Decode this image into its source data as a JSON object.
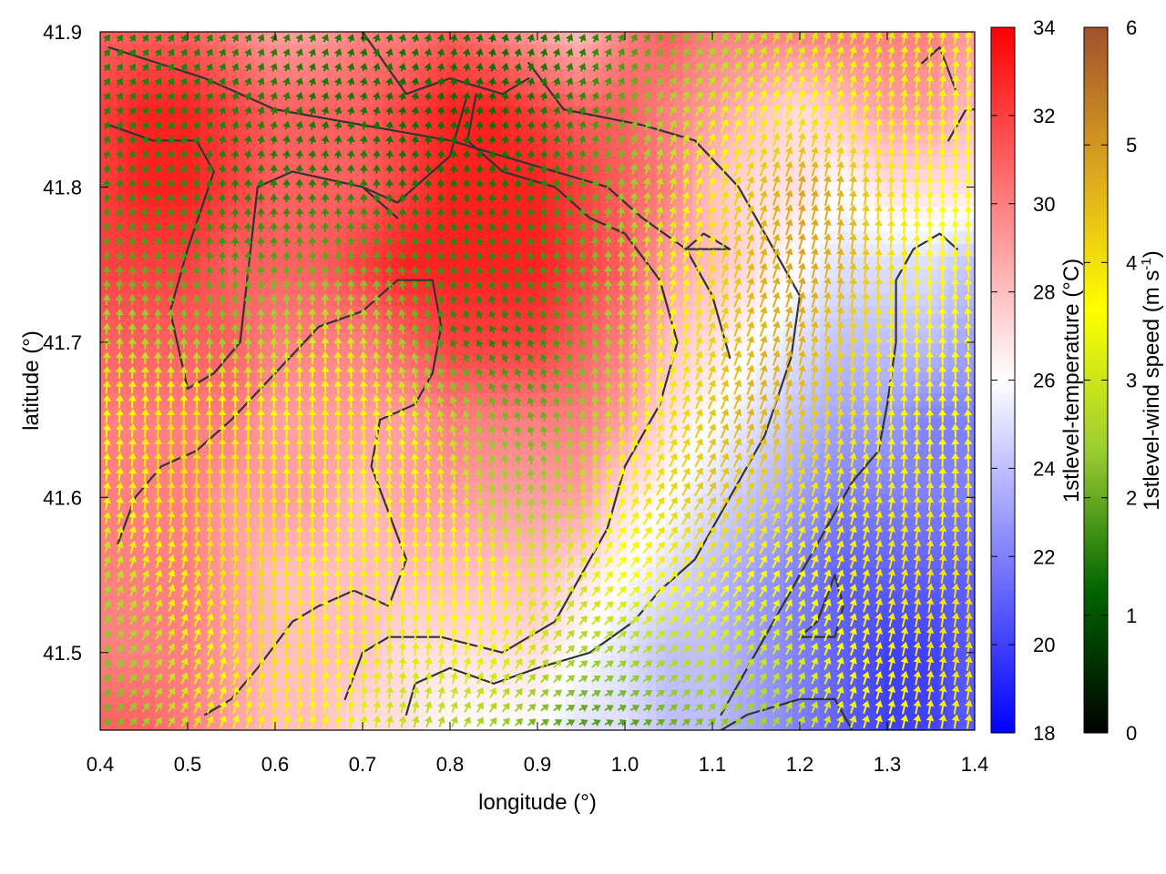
{
  "chart_data": {
    "type": "heatmap",
    "xlabel": "longitude (°)",
    "ylabel": "latitude (°)",
    "xlim": [
      0.4,
      1.4
    ],
    "ylim": [
      41.45,
      41.9
    ],
    "xticks": [
      "0.4",
      "0.5",
      "0.6",
      "0.7",
      "0.8",
      "0.9",
      "1.0",
      "1.1",
      "1.2",
      "1.3",
      "1.4"
    ],
    "yticks": [
      "41.5",
      "41.6",
      "41.7",
      "41.8",
      "41.9"
    ],
    "temperature_colorbar": {
      "label": "1stlevel-temperature (°C)",
      "range": [
        18,
        34
      ],
      "ticks": [
        "18",
        "20",
        "22",
        "24",
        "26",
        "28",
        "30",
        "32",
        "34"
      ],
      "colors": [
        "#0000ff",
        "#ffffff",
        "#ff0000"
      ]
    },
    "windspeed_colorbar": {
      "label_main": "1stlevel-wind speed (m s",
      "label_sup": "-1",
      "label_end": ")",
      "range": [
        0,
        6
      ],
      "ticks": [
        "0",
        "1",
        "2",
        "3",
        "4",
        "5",
        "6"
      ],
      "colors": [
        "#000000",
        "#006400",
        "#9acd32",
        "#ffff00",
        "#daa520",
        "#a0522d"
      ]
    },
    "temperature_field": {
      "description": "gridded 1st-level temperature in °C, lon x lat",
      "lon": [
        0.4,
        0.45,
        0.5,
        0.55,
        0.6,
        0.65,
        0.7,
        0.75,
        0.8,
        0.85,
        0.9,
        0.95,
        1.0,
        1.05,
        1.1,
        1.15,
        1.2,
        1.25,
        1.3,
        1.35,
        1.4
      ],
      "lat": [
        41.9,
        41.85,
        41.8,
        41.75,
        41.7,
        41.65,
        41.6,
        41.55,
        41.5,
        41.45
      ],
      "values": [
        [
          31,
          31,
          31,
          30,
          29,
          29,
          30,
          30,
          31,
          30,
          29,
          28,
          30,
          31,
          30,
          30,
          30,
          30,
          30,
          30,
          29
        ],
        [
          32,
          33,
          33,
          32,
          31,
          31,
          31,
          32,
          33,
          33,
          32,
          31,
          31,
          30,
          29,
          28,
          27,
          28,
          29,
          29,
          28
        ],
        [
          32,
          33,
          33,
          32,
          31,
          31,
          31,
          32,
          33,
          33,
          33,
          32,
          31,
          30,
          28,
          27,
          27,
          26,
          27,
          27,
          27
        ],
        [
          32,
          32,
          32,
          31,
          31,
          31,
          32,
          33,
          33,
          33,
          33,
          32,
          31,
          29,
          28,
          27,
          26,
          25,
          25,
          25,
          24
        ],
        [
          31,
          31,
          31,
          31,
          30,
          30,
          30,
          31,
          32,
          32,
          32,
          31,
          30,
          28,
          27,
          26,
          25,
          24,
          24,
          24,
          23
        ],
        [
          30,
          30,
          30,
          30,
          29,
          29,
          29,
          29,
          30,
          30,
          30,
          30,
          29,
          27,
          26,
          25,
          24,
          23,
          23,
          22,
          22
        ],
        [
          30,
          30,
          30,
          29,
          29,
          29,
          28,
          29,
          29,
          29,
          29,
          29,
          27,
          26,
          25,
          24,
          23,
          22,
          22,
          22,
          22
        ],
        [
          30,
          30,
          30,
          29,
          28,
          28,
          28,
          28,
          28,
          28,
          28,
          27,
          26,
          25,
          24,
          23,
          22,
          21,
          21,
          21,
          21
        ],
        [
          30,
          30,
          30,
          29,
          28,
          28,
          28,
          27,
          27,
          27,
          27,
          26,
          25,
          24,
          24,
          23,
          22,
          21,
          20,
          20,
          21
        ],
        [
          31,
          31,
          30,
          29,
          28,
          28,
          27,
          27,
          26,
          26,
          26,
          25,
          25,
          24,
          24,
          23,
          22,
          21,
          20,
          20,
          21
        ]
      ]
    },
    "wind_field": {
      "description": "gridded 1st-level wind: direction the arrow points (degrees, 0 = north, 90 = east) and speed in m/s",
      "lon": [
        0.4,
        0.45,
        0.5,
        0.55,
        0.6,
        0.65,
        0.7,
        0.75,
        0.8,
        0.85,
        0.9,
        0.95,
        1.0,
        1.05,
        1.1,
        1.15,
        1.2,
        1.25,
        1.3,
        1.35,
        1.4
      ],
      "lat": [
        41.9,
        41.85,
        41.8,
        41.75,
        41.7,
        41.65,
        41.6,
        41.55,
        41.5,
        41.45
      ],
      "direction_deg": [
        [
          35,
          35,
          30,
          30,
          25,
          25,
          20,
          20,
          15,
          15,
          20,
          25,
          30,
          35,
          35,
          30,
          25,
          20,
          15,
          10,
          10
        ],
        [
          35,
          35,
          30,
          25,
          20,
          20,
          15,
          15,
          10,
          10,
          15,
          20,
          25,
          30,
          30,
          25,
          20,
          15,
          10,
          5,
          5
        ],
        [
          10,
          5,
          5,
          0,
          0,
          0,
          0,
          0,
          0,
          0,
          0,
          5,
          10,
          15,
          20,
          20,
          15,
          10,
          5,
          0,
          0
        ],
        [
          5,
          0,
          0,
          0,
          0,
          0,
          0,
          350,
          350,
          345,
          345,
          350,
          5,
          15,
          20,
          20,
          15,
          10,
          5,
          0,
          355
        ],
        [
          5,
          0,
          0,
          0,
          0,
          0,
          355,
          345,
          335,
          330,
          335,
          345,
          0,
          15,
          20,
          20,
          15,
          10,
          5,
          0,
          355
        ],
        [
          5,
          5,
          0,
          0,
          0,
          0,
          355,
          350,
          345,
          340,
          345,
          355,
          10,
          20,
          25,
          20,
          15,
          10,
          5,
          0,
          355
        ],
        [
          10,
          5,
          5,
          0,
          0,
          0,
          355,
          355,
          355,
          355,
          0,
          10,
          25,
          30,
          30,
          25,
          20,
          15,
          10,
          5,
          0
        ],
        [
          25,
          20,
          15,
          10,
          5,
          0,
          0,
          0,
          0,
          5,
          15,
          30,
          40,
          40,
          35,
          30,
          25,
          20,
          15,
          10,
          5
        ],
        [
          40,
          35,
          25,
          15,
          10,
          5,
          5,
          5,
          10,
          20,
          35,
          50,
          55,
          50,
          40,
          30,
          25,
          20,
          15,
          10,
          10
        ],
        [
          45,
          40,
          30,
          20,
          15,
          10,
          10,
          15,
          25,
          40,
          55,
          65,
          65,
          55,
          45,
          35,
          25,
          20,
          15,
          10,
          10
        ]
      ],
      "speed_ms": [
        [
          1.5,
          1.5,
          1.5,
          1.5,
          1.5,
          1.5,
          1.4,
          1.4,
          1.4,
          1.3,
          1.4,
          1.5,
          1.7,
          2.0,
          2.4,
          2.8,
          3.0,
          3.2,
          3.2,
          3.3,
          3.5
        ],
        [
          1.5,
          1.5,
          1.5,
          1.5,
          1.5,
          1.4,
          1.4,
          1.3,
          1.3,
          1.3,
          1.4,
          1.6,
          2.0,
          2.6,
          3.2,
          3.6,
          3.8,
          3.6,
          3.4,
          3.4,
          3.6
        ],
        [
          1.6,
          1.6,
          1.6,
          1.5,
          1.5,
          1.5,
          1.5,
          1.4,
          1.4,
          1.4,
          1.5,
          1.8,
          2.3,
          3.0,
          3.8,
          4.4,
          4.8,
          4.6,
          4.0,
          3.6,
          3.6
        ],
        [
          2.0,
          1.9,
          1.8,
          1.8,
          1.9,
          2.0,
          2.0,
          1.8,
          1.6,
          1.6,
          1.7,
          2.0,
          2.6,
          3.4,
          4.0,
          4.6,
          4.8,
          4.6,
          4.0,
          3.6,
          3.6
        ],
        [
          2.8,
          2.6,
          2.4,
          2.4,
          2.8,
          3.2,
          3.0,
          2.4,
          1.6,
          1.5,
          1.6,
          2.0,
          2.8,
          3.6,
          4.2,
          4.6,
          4.6,
          4.2,
          3.8,
          3.6,
          3.6
        ],
        [
          3.6,
          3.8,
          4.0,
          3.8,
          3.6,
          3.8,
          3.8,
          3.4,
          2.8,
          2.2,
          2.0,
          2.4,
          3.2,
          4.0,
          4.4,
          4.6,
          4.4,
          4.0,
          3.8,
          3.6,
          3.6
        ],
        [
          3.4,
          3.8,
          4.0,
          4.0,
          3.8,
          3.6,
          3.6,
          3.8,
          3.4,
          2.6,
          2.4,
          3.0,
          3.8,
          4.2,
          4.4,
          4.2,
          4.0,
          3.8,
          3.8,
          3.8,
          3.8
        ],
        [
          2.6,
          3.2,
          3.8,
          4.0,
          4.0,
          3.6,
          3.4,
          3.6,
          3.8,
          3.6,
          3.2,
          3.2,
          3.6,
          3.8,
          3.8,
          3.6,
          3.6,
          3.8,
          4.0,
          4.0,
          4.0
        ],
        [
          2.2,
          2.6,
          3.2,
          3.8,
          4.0,
          3.8,
          3.4,
          3.2,
          3.4,
          3.4,
          3.0,
          2.6,
          2.6,
          2.8,
          3.0,
          3.0,
          3.2,
          3.6,
          3.8,
          4.0,
          4.0
        ],
        [
          2.0,
          2.4,
          3.0,
          3.6,
          3.8,
          3.6,
          3.2,
          2.8,
          2.6,
          2.4,
          2.0,
          1.8,
          1.8,
          2.0,
          2.2,
          2.4,
          2.8,
          3.2,
          3.6,
          3.8,
          3.8
        ]
      ]
    },
    "contours": [
      [
        [
          0.41,
          41.89
        ],
        [
          0.52,
          41.87
        ],
        [
          0.6,
          41.85
        ],
        [
          0.7,
          41.84
        ],
        [
          0.8,
          41.83
        ],
        [
          0.86,
          41.82
        ],
        [
          0.92,
          41.81
        ],
        [
          0.98,
          41.8
        ],
        [
          1.02,
          41.78
        ],
        [
          1.07,
          41.76
        ],
        [
          1.1,
          41.73
        ],
        [
          1.12,
          41.69
        ]
      ],
      [
        [
          0.7,
          41.9
        ],
        [
          0.75,
          41.86
        ],
        [
          0.8,
          41.87
        ],
        [
          0.86,
          41.86
        ],
        [
          0.89,
          41.87
        ]
      ],
      [
        [
          0.89,
          41.88
        ],
        [
          0.93,
          41.85
        ],
        [
          1.02,
          41.84
        ],
        [
          1.08,
          41.83
        ],
        [
          1.13,
          41.8
        ],
        [
          1.17,
          41.76
        ],
        [
          1.2,
          41.73
        ],
        [
          1.19,
          41.69
        ],
        [
          1.16,
          41.64
        ],
        [
          1.12,
          41.6
        ],
        [
          1.08,
          41.56
        ],
        [
          1.04,
          41.54
        ],
        [
          1.01,
          41.52
        ],
        [
          0.96,
          41.5
        ],
        [
          0.9,
          41.49
        ],
        [
          0.85,
          41.48
        ],
        [
          0.8,
          41.49
        ],
        [
          0.76,
          41.48
        ],
        [
          0.75,
          41.46
        ]
      ],
      [
        [
          0.41,
          41.84
        ],
        [
          0.46,
          41.83
        ],
        [
          0.51,
          41.83
        ],
        [
          0.53,
          41.81
        ],
        [
          0.5,
          41.76
        ],
        [
          0.48,
          41.72
        ],
        [
          0.5,
          41.67
        ],
        [
          0.53,
          41.68
        ],
        [
          0.56,
          41.7
        ],
        [
          0.57,
          41.75
        ],
        [
          0.58,
          41.8
        ],
        [
          0.62,
          41.81
        ],
        [
          0.7,
          41.8
        ],
        [
          0.74,
          41.78
        ]
      ],
      [
        [
          0.82,
          41.86
        ],
        [
          0.8,
          41.82
        ],
        [
          0.74,
          41.79
        ],
        [
          0.7,
          41.8
        ]
      ],
      [
        [
          0.83,
          41.86
        ],
        [
          0.82,
          41.83
        ],
        [
          0.86,
          41.81
        ],
        [
          0.92,
          41.8
        ],
        [
          0.96,
          41.78
        ],
        [
          1.0,
          41.77
        ],
        [
          1.04,
          41.74
        ],
        [
          1.06,
          41.7
        ],
        [
          1.04,
          41.66
        ],
        [
          1.0,
          41.62
        ],
        [
          0.98,
          41.58
        ],
        [
          0.95,
          41.55
        ],
        [
          0.92,
          41.52
        ],
        [
          0.86,
          41.5
        ],
        [
          0.79,
          41.51
        ],
        [
          0.73,
          41.51
        ],
        [
          0.7,
          41.5
        ],
        [
          0.68,
          41.47
        ]
      ],
      [
        [
          0.42,
          41.57
        ],
        [
          0.44,
          41.6
        ],
        [
          0.47,
          41.62
        ],
        [
          0.51,
          41.63
        ],
        [
          0.55,
          41.65
        ],
        [
          0.6,
          41.68
        ],
        [
          0.65,
          41.71
        ],
        [
          0.7,
          41.72
        ],
        [
          0.74,
          41.74
        ],
        [
          0.78,
          41.74
        ],
        [
          0.79,
          41.71
        ],
        [
          0.78,
          41.68
        ],
        [
          0.76,
          41.66
        ],
        [
          0.72,
          41.65
        ],
        [
          0.71,
          41.62
        ],
        [
          0.73,
          41.59
        ],
        [
          0.75,
          41.56
        ],
        [
          0.73,
          41.53
        ],
        [
          0.69,
          41.54
        ],
        [
          0.65,
          41.53
        ],
        [
          0.62,
          41.52
        ],
        [
          0.58,
          41.49
        ],
        [
          0.55,
          41.47
        ],
        [
          0.52,
          41.46
        ]
      ],
      [
        [
          1.11,
          41.46
        ],
        [
          1.14,
          41.49
        ],
        [
          1.17,
          41.52
        ],
        [
          1.2,
          41.55
        ],
        [
          1.23,
          41.58
        ],
        [
          1.26,
          41.61
        ],
        [
          1.29,
          41.63
        ],
        [
          1.3,
          41.66
        ],
        [
          1.31,
          41.7
        ],
        [
          1.31,
          41.74
        ],
        [
          1.33,
          41.76
        ],
        [
          1.36,
          41.77
        ],
        [
          1.38,
          41.76
        ]
      ],
      [
        [
          1.08,
          41.44
        ],
        [
          1.14,
          41.46
        ],
        [
          1.2,
          41.47
        ],
        [
          1.24,
          41.47
        ],
        [
          1.26,
          41.45
        ]
      ],
      [
        [
          1.2,
          41.51
        ],
        [
          1.24,
          41.51
        ],
        [
          1.25,
          41.53
        ],
        [
          1.24,
          41.55
        ],
        [
          1.22,
          41.52
        ],
        [
          1.2,
          41.51
        ]
      ],
      [
        [
          1.07,
          41.76
        ],
        [
          1.09,
          41.77
        ],
        [
          1.12,
          41.76
        ],
        [
          1.09,
          41.76
        ],
        [
          1.07,
          41.76
        ]
      ],
      [
        [
          1.34,
          41.88
        ],
        [
          1.36,
          41.89
        ],
        [
          1.38,
          41.86
        ]
      ],
      [
        [
          1.37,
          41.83
        ],
        [
          1.39,
          41.85
        ],
        [
          1.4,
          41.85
        ]
      ]
    ]
  }
}
